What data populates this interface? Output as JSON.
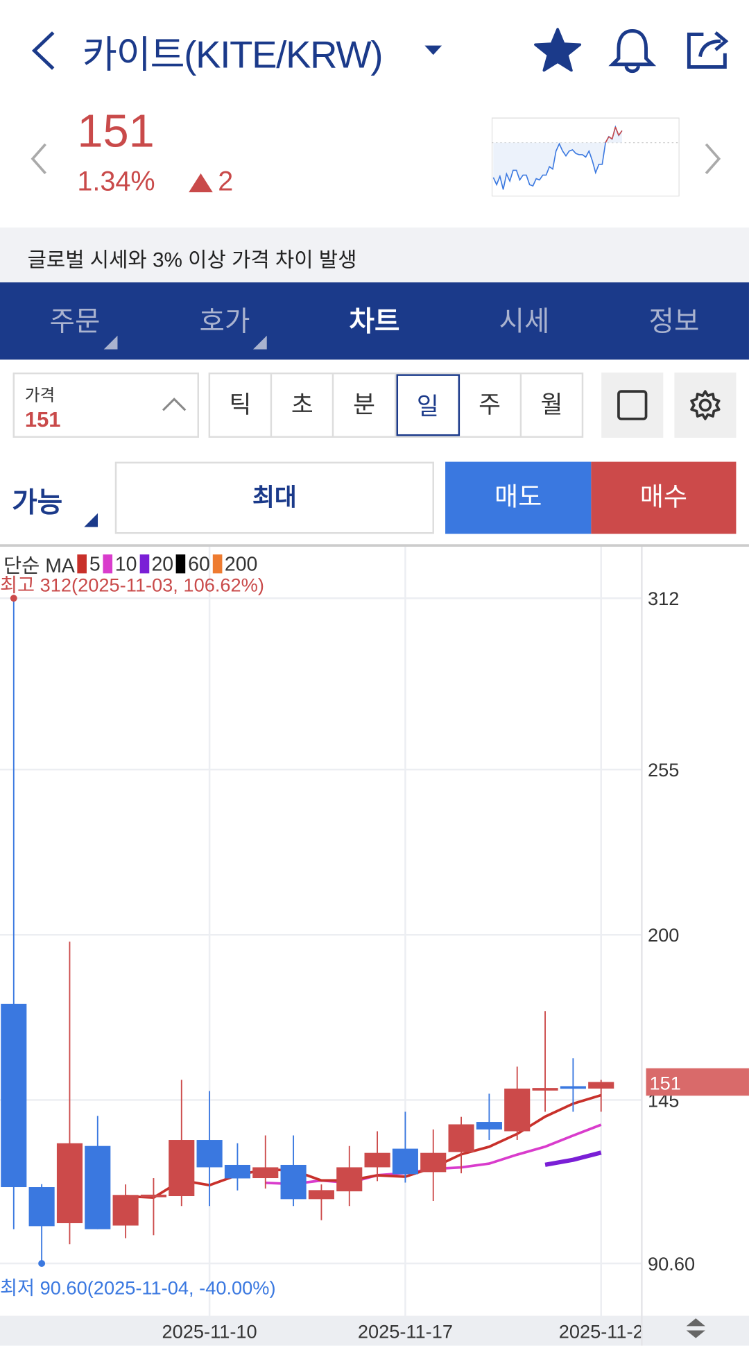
{
  "header": {
    "title": "카이트(KITE/KRW)",
    "icons": [
      "back-chevron-icon",
      "dropdown-caret-icon",
      "star-icon",
      "bell-icon",
      "share-icon"
    ]
  },
  "quote": {
    "price": "151",
    "change_pct": "1.34%",
    "change_abs": "2",
    "direction": "up",
    "up_color": "#c94a4a",
    "down_color": "#3a78e0",
    "sparkline": [
      118,
      112,
      119,
      108,
      121,
      115,
      124,
      124,
      116,
      120,
      120,
      112,
      111,
      117,
      116,
      120,
      120,
      127,
      125,
      140,
      146,
      140,
      136,
      140,
      141,
      138,
      137,
      137,
      135,
      140,
      132,
      122,
      129,
      129,
      147,
      152,
      150,
      160,
      153,
      157
    ],
    "sparkline_reference": 147
  },
  "notice": "글로벌 시세와 3% 이상 가격 차이 발생",
  "tabs": [
    {
      "label": "주문"
    },
    {
      "label": "호가"
    },
    {
      "label": "차트",
      "active": true
    },
    {
      "label": "시세"
    },
    {
      "label": "정보"
    }
  ],
  "controls": {
    "price_label": "가격",
    "price_value": "151",
    "periods": [
      "틱",
      "초",
      "분",
      "일",
      "주",
      "월"
    ],
    "selected_period": "일"
  },
  "order": {
    "available": "가능",
    "max": "최대",
    "sell": "매도",
    "buy": "매수"
  },
  "chart_data": {
    "type": "candlestick",
    "legend_title": "단순 MA",
    "ma": [
      {
        "name": "5",
        "color": "#c8302a"
      },
      {
        "name": "10",
        "color": "#d93ccc"
      },
      {
        "name": "20",
        "color": "#7a1fd6"
      },
      {
        "name": "60",
        "color": "#000000"
      },
      {
        "name": "200",
        "color": "#ee7b30"
      }
    ],
    "high_label": "최고 312(2025-11-03, 106.62%)",
    "low_label": "최저 90.60(2025-11-04, -40.00%)",
    "y_ticks": [
      "312",
      "255",
      "200",
      "145",
      "90.60"
    ],
    "ylim": [
      90.6,
      312
    ],
    "x_ticks": [
      "2025-11-10",
      "2025-11-17",
      "2025-11-2"
    ],
    "current_price_label": "151",
    "candles": [
      {
        "date": "2025-11-03",
        "o": 177,
        "h": 312,
        "l": 102,
        "c": 116
      },
      {
        "date": "2025-11-04",
        "o": 116,
        "h": 117,
        "l": 90.6,
        "c": 103
      },
      {
        "date": "2025-11-05",
        "o": 104,
        "h": 197.7,
        "l": 97,
        "c": 130.6
      },
      {
        "date": "2025-11-06",
        "o": 129.7,
        "h": 139.7,
        "l": 102,
        "c": 102
      },
      {
        "date": "2025-11-07",
        "o": 103.2,
        "h": 116.9,
        "l": 99,
        "c": 113.4
      },
      {
        "date": "2025-11-08",
        "o": 113,
        "h": 119,
        "l": 100,
        "c": 113.5
      },
      {
        "date": "2025-11-09",
        "o": 113,
        "h": 151.7,
        "l": 109.7,
        "c": 131.7
      },
      {
        "date": "2025-11-10",
        "o": 131.7,
        "h": 148,
        "l": 109.7,
        "c": 122.6
      },
      {
        "date": "2025-11-11",
        "o": 123.4,
        "h": 130.6,
        "l": 114.9,
        "c": 118.9
      },
      {
        "date": "2025-11-12",
        "o": 119,
        "h": 133.2,
        "l": 115.5,
        "c": 122.6
      },
      {
        "date": "2025-11-13",
        "o": 123.4,
        "h": 133.2,
        "l": 109.7,
        "c": 112
      },
      {
        "date": "2025-11-14",
        "o": 112,
        "h": 116.9,
        "l": 105,
        "c": 115
      },
      {
        "date": "2025-11-15",
        "o": 114.6,
        "h": 129.7,
        "l": 109.7,
        "c": 122.6
      },
      {
        "date": "2025-11-16",
        "o": 122.6,
        "h": 134.6,
        "l": 118,
        "c": 127.4
      },
      {
        "date": "2025-11-17",
        "o": 128.8,
        "h": 141.1,
        "l": 117.5,
        "c": 120.3
      },
      {
        "date": "2025-11-18",
        "o": 121,
        "h": 135.2,
        "l": 111.4,
        "c": 127.4
      },
      {
        "date": "2025-11-19",
        "o": 127.7,
        "h": 139.4,
        "l": 120.6,
        "c": 136.9
      },
      {
        "date": "2025-11-20",
        "o": 137.7,
        "h": 147.1,
        "l": 131.7,
        "c": 135.2
      },
      {
        "date": "2025-11-21",
        "o": 134.6,
        "h": 156.1,
        "l": 131.7,
        "c": 148.8
      },
      {
        "date": "2025-11-22",
        "o": 148.8,
        "h": 174.6,
        "l": 141.1,
        "c": 149
      },
      {
        "date": "2025-11-23",
        "o": 149.6,
        "h": 158.9,
        "l": 141.1,
        "c": 149
      },
      {
        "date": "2025-11-24",
        "o": 148.8,
        "h": 151.7,
        "l": 141.1,
        "c": 151
      }
    ]
  }
}
